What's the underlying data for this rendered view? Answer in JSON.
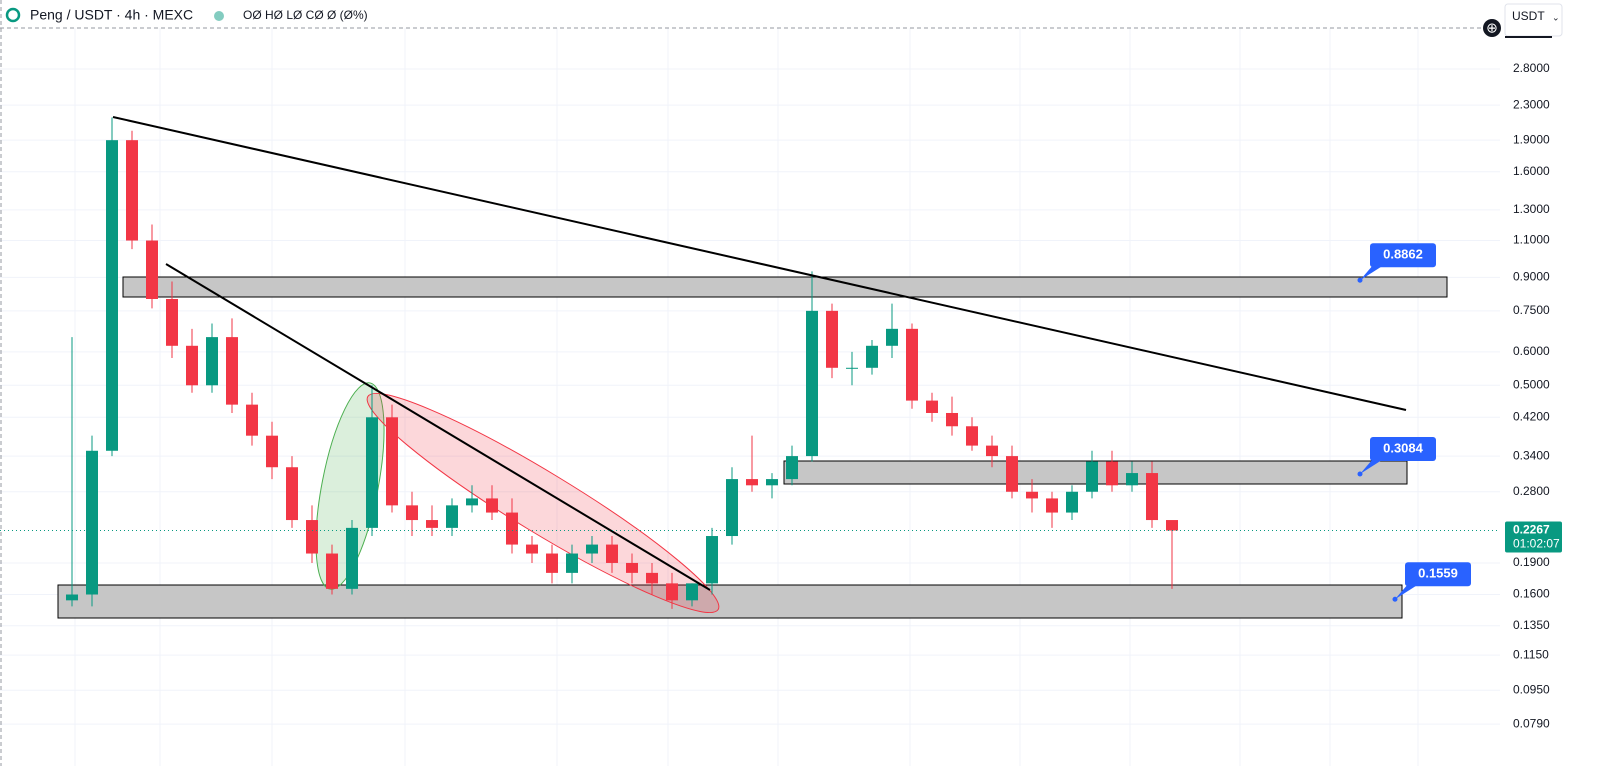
{
  "header": {
    "symbol": "Peng / USDT · 4h · MEXC",
    "ohlc": "OØ HØ LØ CØ Ø (Ø%)",
    "currency": "USDT"
  },
  "chart_data": {
    "type": "candlestick",
    "log_scale": true,
    "grid": true,
    "up_color": "#089981",
    "down_color": "#f23645",
    "open": [
      0.155,
      0.16,
      0.35,
      1.9,
      1.1,
      0.8,
      0.62,
      0.5,
      0.65,
      0.45,
      0.38,
      0.32,
      0.24,
      0.2,
      0.165,
      0.23,
      0.42,
      0.26,
      0.24,
      0.23,
      0.26,
      0.27,
      0.25,
      0.21,
      0.2,
      0.18,
      0.2,
      0.21,
      0.19,
      0.18,
      0.17,
      0.155,
      0.17,
      0.22,
      0.3,
      0.29,
      0.3,
      0.34,
      0.75,
      0.55,
      0.55,
      0.62,
      0.68,
      0.46,
      0.43,
      0.4,
      0.36,
      0.34,
      0.28,
      0.27,
      0.25,
      0.28,
      0.33,
      0.29,
      0.31,
      0.24
    ],
    "high": [
      0.65,
      0.38,
      2.15,
      2.0,
      1.2,
      0.88,
      0.68,
      0.7,
      0.72,
      0.48,
      0.41,
      0.34,
      0.26,
      0.21,
      0.24,
      0.5,
      0.45,
      0.28,
      0.26,
      0.27,
      0.29,
      0.29,
      0.27,
      0.22,
      0.21,
      0.21,
      0.22,
      0.22,
      0.2,
      0.19,
      0.18,
      0.17,
      0.23,
      0.32,
      0.38,
      0.31,
      0.36,
      0.93,
      0.78,
      0.6,
      0.64,
      0.78,
      0.7,
      0.48,
      0.47,
      0.42,
      0.38,
      0.36,
      0.3,
      0.28,
      0.29,
      0.35,
      0.35,
      0.33,
      0.33,
      0.235
    ],
    "low": [
      0.15,
      0.15,
      0.34,
      1.05,
      0.76,
      0.58,
      0.48,
      0.48,
      0.43,
      0.36,
      0.3,
      0.23,
      0.19,
      0.16,
      0.16,
      0.22,
      0.25,
      0.22,
      0.22,
      0.22,
      0.25,
      0.24,
      0.2,
      0.19,
      0.17,
      0.17,
      0.19,
      0.18,
      0.17,
      0.16,
      0.148,
      0.15,
      0.16,
      0.21,
      0.28,
      0.27,
      0.29,
      0.33,
      0.52,
      0.5,
      0.53,
      0.58,
      0.44,
      0.41,
      0.38,
      0.35,
      0.32,
      0.27,
      0.25,
      0.23,
      0.24,
      0.27,
      0.28,
      0.28,
      0.23,
      0.165
    ],
    "close": [
      0.16,
      0.35,
      1.9,
      1.1,
      0.8,
      0.62,
      0.5,
      0.65,
      0.45,
      0.38,
      0.32,
      0.24,
      0.2,
      0.165,
      0.23,
      0.42,
      0.26,
      0.24,
      0.23,
      0.26,
      0.27,
      0.25,
      0.21,
      0.2,
      0.18,
      0.2,
      0.21,
      0.19,
      0.18,
      0.17,
      0.155,
      0.17,
      0.22,
      0.3,
      0.29,
      0.3,
      0.34,
      0.75,
      0.55,
      0.55,
      0.62,
      0.68,
      0.46,
      0.43,
      0.4,
      0.36,
      0.34,
      0.28,
      0.27,
      0.25,
      0.28,
      0.33,
      0.29,
      0.31,
      0.24,
      0.2267
    ],
    "ylim": [
      0.0686,
      3.5
    ],
    "yticks": [
      {
        "value": 2.8,
        "label": "2.8000"
      },
      {
        "value": 2.3,
        "label": "2.3000"
      },
      {
        "value": 1.9,
        "label": "1.9000"
      },
      {
        "value": 1.6,
        "label": "1.6000"
      },
      {
        "value": 1.3,
        "label": "1.3000"
      },
      {
        "value": 1.1,
        "label": "1.1000"
      },
      {
        "value": 0.9,
        "label": "0.9000"
      },
      {
        "value": 0.75,
        "label": "0.7500"
      },
      {
        "value": 0.6,
        "label": "0.6000"
      },
      {
        "value": 0.5,
        "label": "0.5000"
      },
      {
        "value": 0.42,
        "label": "0.4200"
      },
      {
        "value": 0.34,
        "label": "0.3400"
      },
      {
        "value": 0.28,
        "label": "0.2800"
      },
      {
        "value": 0.19,
        "label": "0.1900"
      },
      {
        "value": 0.16,
        "label": "0.1600"
      },
      {
        "value": 0.135,
        "label": "0.1350"
      },
      {
        "value": 0.115,
        "label": "0.1150"
      },
      {
        "value": 0.095,
        "label": "0.0950"
      },
      {
        "value": 0.079,
        "label": "0.0790"
      }
    ],
    "last_price": {
      "value": 0.2267,
      "countdown": "01:02:07",
      "color": "#089981"
    },
    "price_labels": [
      0.8862,
      0.3084,
      0.1559
    ],
    "price_label_color": "#2962ff"
  }
}
